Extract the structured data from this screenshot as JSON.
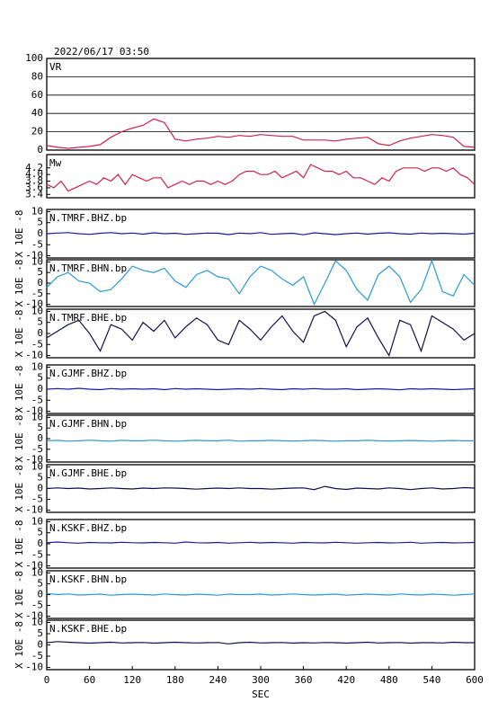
{
  "chart_data": [
    {
      "type": "line",
      "title": "2022/06/17 03:50",
      "label": "VR",
      "color": "#d0204a",
      "grid": true,
      "xlim": [
        0,
        600
      ],
      "ylim": [
        0,
        100
      ],
      "yticks": [
        0,
        20,
        40,
        60,
        80,
        100
      ],
      "x": [
        0,
        15,
        30,
        45,
        60,
        75,
        90,
        105,
        120,
        135,
        150,
        165,
        180,
        195,
        210,
        225,
        240,
        255,
        270,
        285,
        300,
        315,
        330,
        345,
        360,
        375,
        390,
        405,
        420,
        435,
        450,
        465,
        480,
        495,
        510,
        525,
        540,
        555,
        570,
        585,
        600
      ],
      "values": [
        5,
        3,
        2,
        3,
        4,
        6,
        14,
        20,
        24,
        27,
        34,
        30,
        12,
        10,
        12,
        13,
        15,
        14,
        16,
        15,
        17,
        16,
        15,
        15,
        11,
        11,
        11,
        10,
        12,
        13,
        14,
        7,
        5,
        10,
        13,
        15,
        17,
        16,
        14,
        4,
        3
      ]
    },
    {
      "type": "line",
      "label": "Mw",
      "color": "#d0204a",
      "xlim": [
        0,
        600
      ],
      "ylim": [
        3.3,
        4.6
      ],
      "yticks": [
        3.4,
        3.6,
        3.8,
        {
          "value": 4,
          "label": "4.0"
        },
        4.2
      ],
      "x": [
        0,
        10,
        20,
        30,
        40,
        50,
        60,
        70,
        80,
        90,
        100,
        110,
        120,
        130,
        140,
        150,
        160,
        170,
        180,
        190,
        200,
        210,
        220,
        230,
        240,
        250,
        260,
        270,
        280,
        290,
        300,
        310,
        320,
        330,
        340,
        350,
        360,
        370,
        380,
        390,
        400,
        410,
        420,
        430,
        440,
        450,
        460,
        470,
        480,
        490,
        500,
        510,
        520,
        530,
        540,
        550,
        560,
        570,
        580,
        590,
        600
      ],
      "values": [
        3.7,
        3.6,
        3.8,
        3.5,
        3.6,
        3.7,
        3.8,
        3.7,
        3.9,
        3.8,
        4.0,
        3.7,
        4.0,
        3.9,
        3.8,
        3.9,
        3.9,
        3.6,
        3.7,
        3.8,
        3.7,
        3.8,
        3.8,
        3.7,
        3.8,
        3.7,
        3.8,
        4.0,
        4.1,
        4.1,
        4.0,
        4.0,
        4.1,
        3.9,
        4.0,
        4.1,
        3.9,
        4.3,
        4.2,
        4.1,
        4.1,
        4.0,
        4.1,
        3.9,
        3.9,
        3.8,
        3.7,
        3.9,
        3.8,
        4.1,
        4.2,
        4.2,
        4.2,
        4.1,
        4.2,
        4.2,
        4.1,
        4.2,
        4.0,
        3.9,
        3.7
      ]
    },
    {
      "type": "line",
      "label": "N.TMRF.BHZ.bp",
      "y_label": "X 10E -8",
      "color": "#1a1aa0",
      "xlim": [
        0,
        600
      ],
      "ylim": [
        -11,
        11
      ],
      "yticks": [
        -10,
        -5,
        0,
        5,
        10
      ],
      "x": [
        0,
        15,
        30,
        45,
        60,
        75,
        90,
        105,
        120,
        135,
        150,
        165,
        180,
        195,
        210,
        225,
        240,
        255,
        270,
        285,
        300,
        315,
        330,
        345,
        360,
        375,
        390,
        405,
        420,
        435,
        450,
        465,
        480,
        495,
        510,
        525,
        540,
        555,
        570,
        585,
        600
      ],
      "values": [
        0,
        0.3,
        0.5,
        0,
        -0.3,
        0.2,
        0.5,
        0,
        0.3,
        -0.2,
        0.4,
        0,
        0.2,
        -0.3,
        0,
        0.3,
        0.2,
        -0.4,
        0.3,
        0,
        0.5,
        -0.3,
        0,
        0.2,
        -0.5,
        0.4,
        0,
        -0.4,
        0,
        0.3,
        -0.2,
        0.2,
        0.4,
        0,
        -0.2,
        0.3,
        0,
        0.2,
        0,
        -0.2,
        0.2
      ]
    },
    {
      "type": "line",
      "label": "N.TMRF.BHN.bp",
      "y_label": "X 10E -8",
      "color": "#2a9ad8",
      "xlim": [
        0,
        600
      ],
      "ylim": [
        -11,
        11
      ],
      "yticks": [
        -10,
        -5,
        0,
        5,
        10
      ],
      "x": [
        0,
        15,
        30,
        45,
        60,
        75,
        90,
        105,
        120,
        135,
        150,
        165,
        180,
        195,
        210,
        225,
        240,
        255,
        270,
        285,
        300,
        315,
        330,
        345,
        360,
        375,
        390,
        405,
        420,
        435,
        450,
        465,
        480,
        495,
        510,
        525,
        540,
        555,
        570,
        585,
        600
      ],
      "values": [
        -2,
        3,
        5,
        1,
        0,
        -4,
        -3,
        2,
        8,
        6,
        5,
        7,
        1,
        -2,
        4,
        6,
        3,
        2,
        -5,
        3,
        8,
        6,
        2,
        -1,
        3,
        -10,
        0,
        10.5,
        6,
        -3,
        -8,
        4,
        8,
        3,
        -9,
        -3,
        10.5,
        -4,
        -6,
        4,
        -1
      ]
    },
    {
      "type": "line",
      "label": "N.TMRF.BHE.bp",
      "y_label": "X 10E -8",
      "color": "#101050",
      "xlim": [
        0,
        600
      ],
      "ylim": [
        -11,
        11
      ],
      "yticks": [
        -10,
        -5,
        0,
        5,
        10
      ],
      "x": [
        0,
        15,
        30,
        45,
        60,
        75,
        90,
        105,
        120,
        135,
        150,
        165,
        180,
        195,
        210,
        225,
        240,
        255,
        270,
        285,
        300,
        315,
        330,
        345,
        360,
        375,
        390,
        405,
        420,
        435,
        450,
        465,
        480,
        495,
        510,
        525,
        540,
        555,
        570,
        585,
        600
      ],
      "values": [
        -2,
        1,
        4,
        6,
        0,
        -8,
        4,
        2,
        -3,
        5,
        1,
        6,
        -2,
        3,
        7,
        4,
        -3,
        -5,
        6,
        2,
        -3,
        3,
        8,
        1,
        -4,
        8,
        10,
        6,
        -6,
        3,
        7,
        -2,
        -10,
        6,
        4,
        -8,
        8,
        5,
        2,
        -3,
        0
      ]
    },
    {
      "type": "line",
      "label": "N.GJMF.BHZ.bp",
      "y_label": "X 10E -8",
      "color": "#1a1aa0",
      "xlim": [
        0,
        600
      ],
      "ylim": [
        -11,
        11
      ],
      "yticks": [
        -10,
        -5,
        0,
        5,
        10
      ],
      "x": [
        0,
        15,
        30,
        45,
        60,
        75,
        90,
        105,
        120,
        135,
        150,
        165,
        180,
        195,
        210,
        225,
        240,
        255,
        270,
        285,
        300,
        315,
        330,
        345,
        360,
        375,
        390,
        405,
        420,
        435,
        450,
        465,
        480,
        495,
        510,
        525,
        540,
        555,
        570,
        585,
        600
      ],
      "values": [
        0,
        0.3,
        0,
        0.4,
        0,
        -0.2,
        0.3,
        0,
        0.2,
        0,
        0.2,
        -0.2,
        0.3,
        0,
        0.2,
        0,
        -0.2,
        0,
        0.2,
        0,
        0.3,
        0,
        -0.2,
        0.2,
        0,
        0.3,
        0,
        0,
        0.2,
        -0.2,
        0,
        0.2,
        0,
        -0.3,
        0.2,
        0,
        0.2,
        0,
        -0.2,
        0,
        0.2
      ]
    },
    {
      "type": "line",
      "label": "N.GJMF.BHN.bp",
      "y_label": "X 10E -8",
      "color": "#2a9ad8",
      "xlim": [
        0,
        600
      ],
      "ylim": [
        -11,
        11
      ],
      "yticks": [
        -10,
        -5,
        0,
        5,
        10
      ],
      "x": [
        0,
        15,
        30,
        45,
        60,
        75,
        90,
        105,
        120,
        135,
        150,
        165,
        180,
        195,
        210,
        225,
        240,
        255,
        270,
        285,
        300,
        315,
        330,
        345,
        360,
        375,
        390,
        405,
        420,
        435,
        450,
        465,
        480,
        495,
        510,
        525,
        540,
        555,
        570,
        585,
        600
      ],
      "values": [
        -1,
        -0.8,
        -1.2,
        -1,
        -0.7,
        -1,
        -1.2,
        -0.8,
        -1,
        -1,
        -0.7,
        -1,
        -1.2,
        -1,
        -0.8,
        -1,
        -1,
        -0.7,
        -1.2,
        -1,
        -1,
        -0.8,
        -1,
        -1.1,
        -1,
        -0.8,
        -1,
        -1.2,
        -1,
        -1,
        -0.8,
        -1,
        -1.1,
        -1,
        -0.9,
        -1,
        -1.2,
        -1,
        -0.9,
        -1,
        -1
      ]
    },
    {
      "type": "line",
      "label": "N.GJMF.BHE.bp",
      "y_label": "X 10E -8",
      "color": "#101050",
      "xlim": [
        0,
        600
      ],
      "ylim": [
        -11,
        11
      ],
      "yticks": [
        -10,
        -5,
        0,
        5,
        10
      ],
      "x": [
        0,
        15,
        30,
        45,
        60,
        75,
        90,
        105,
        120,
        135,
        150,
        165,
        180,
        195,
        210,
        225,
        240,
        255,
        270,
        285,
        300,
        315,
        330,
        345,
        360,
        375,
        390,
        405,
        420,
        435,
        450,
        465,
        480,
        495,
        510,
        525,
        540,
        555,
        570,
        585,
        600
      ],
      "values": [
        0,
        0.3,
        0,
        0.2,
        -0.2,
        0,
        0.3,
        0,
        -0.2,
        0.2,
        0,
        0.3,
        0.2,
        0,
        -0.3,
        0,
        0.2,
        0,
        0.3,
        0,
        0,
        -0.3,
        0,
        0.2,
        0.3,
        -0.5,
        1,
        0,
        -0.4,
        0.2,
        0,
        -0.2,
        0.3,
        0,
        -0.5,
        0,
        0.3,
        -0.2,
        0,
        0.4,
        0.2
      ]
    },
    {
      "type": "line",
      "label": "N.KSKF.BHZ.bp",
      "y_label": "X 10E -8",
      "color": "#1a1aa0",
      "xlim": [
        0,
        600
      ],
      "ylim": [
        -11,
        11
      ],
      "yticks": [
        -10,
        -5,
        0,
        5,
        10
      ],
      "x": [
        0,
        15,
        30,
        45,
        60,
        75,
        90,
        105,
        120,
        135,
        150,
        165,
        180,
        195,
        210,
        225,
        240,
        255,
        270,
        285,
        300,
        315,
        330,
        345,
        360,
        375,
        390,
        405,
        420,
        435,
        450,
        465,
        480,
        495,
        510,
        525,
        540,
        555,
        570,
        585,
        600
      ],
      "values": [
        0.5,
        0.8,
        0.5,
        0.3,
        0.6,
        0.5,
        0.4,
        0.7,
        0.5,
        0.4,
        0.6,
        0.5,
        0.3,
        0.8,
        0.5,
        0.4,
        0.6,
        0.3,
        0.5,
        0.7,
        0.4,
        0.6,
        0.5,
        0.3,
        0.6,
        0.5,
        0.4,
        0.7,
        0.5,
        0.3,
        0.5,
        0.6,
        0.4,
        0.5,
        0.7,
        0.3,
        0.5,
        0.6,
        0.4,
        0.5,
        0.6
      ]
    },
    {
      "type": "line",
      "label": "N.KSKF.BHN.bp",
      "y_label": "X 10E -8",
      "color": "#2a9ad8",
      "xlim": [
        0,
        600
      ],
      "ylim": [
        -11,
        11
      ],
      "yticks": [
        -10,
        -5,
        0,
        5,
        10
      ],
      "x": [
        0,
        15,
        30,
        45,
        60,
        75,
        90,
        105,
        120,
        135,
        150,
        165,
        180,
        195,
        210,
        225,
        240,
        255,
        270,
        285,
        300,
        315,
        330,
        345,
        360,
        375,
        390,
        405,
        420,
        435,
        450,
        465,
        480,
        495,
        510,
        525,
        540,
        555,
        570,
        585,
        600
      ],
      "values": [
        0.5,
        0,
        0.3,
        -0.2,
        0,
        0.2,
        -0.3,
        0,
        0.2,
        0,
        -0.2,
        0.3,
        0,
        -0.2,
        0.2,
        0,
        -0.3,
        0.2,
        0,
        0,
        0.2,
        -0.2,
        0,
        0.3,
        0,
        -0.2,
        0,
        0.2,
        -0.3,
        0,
        0.2,
        0,
        -0.2,
        0.3,
        0,
        -0.2,
        0.2,
        0,
        -0.3,
        0,
        0.3
      ]
    },
    {
      "type": "line",
      "label": "N.KSKF.BHE.bp",
      "y_label": "X 10E -8",
      "color": "#101050",
      "xlim": [
        0,
        600
      ],
      "ylim": [
        -11,
        11
      ],
      "yticks": [
        -10,
        -5,
        0,
        5,
        10
      ],
      "x_label": "SEC",
      "xticks": [
        0,
        60,
        120,
        180,
        240,
        300,
        360,
        420,
        480,
        540,
        600
      ],
      "x": [
        0,
        15,
        30,
        45,
        60,
        75,
        90,
        105,
        120,
        135,
        150,
        165,
        180,
        195,
        210,
        225,
        240,
        255,
        270,
        285,
        300,
        315,
        330,
        345,
        360,
        375,
        390,
        405,
        420,
        435,
        450,
        465,
        480,
        495,
        510,
        525,
        540,
        555,
        570,
        585,
        600
      ],
      "values": [
        1,
        1.5,
        1.2,
        1,
        0.8,
        1,
        1.2,
        0.9,
        1,
        1.1,
        0.8,
        1,
        1.2,
        1,
        0.9,
        1,
        1.1,
        0.5,
        1,
        1.2,
        0.9,
        1,
        1.1,
        0.8,
        1,
        0.9,
        1.1,
        1,
        0.8,
        1,
        1.2,
        0.9,
        1,
        1.1,
        0.8,
        1,
        1,
        0.9,
        1.2,
        1,
        1
      ]
    }
  ]
}
